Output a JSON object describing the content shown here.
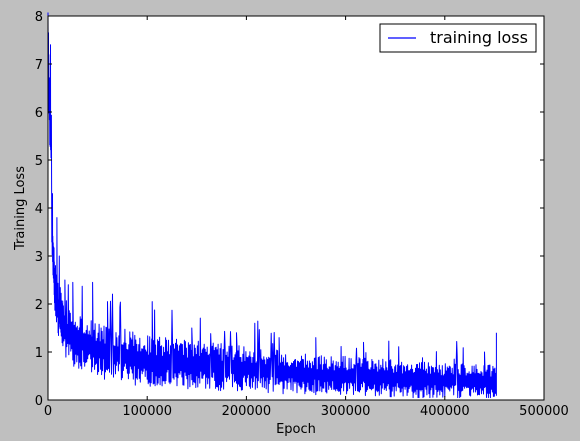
{
  "chart_data": {
    "type": "line",
    "xlabel": "Epoch",
    "ylabel": "Training Loss",
    "xlim": [
      0,
      500000
    ],
    "ylim": [
      0,
      8
    ],
    "xticks": [
      0,
      100000,
      200000,
      300000,
      400000,
      500000
    ],
    "yticks": [
      0,
      1,
      2,
      3,
      4,
      5,
      6,
      7,
      8
    ],
    "xtick_labels": [
      "0",
      "100000",
      "200000",
      "300000",
      "400000",
      "500000"
    ],
    "ytick_labels": [
      "0",
      "1",
      "2",
      "3",
      "4",
      "5",
      "6",
      "7",
      "8"
    ],
    "grid": false,
    "legend_position": "top-right",
    "series": [
      {
        "name": "training loss",
        "color": "#0000ff",
        "x": [
          0,
          1000,
          2000,
          3000,
          4000,
          5000,
          7000,
          10000,
          15000,
          20000,
          30000,
          40000,
          50000,
          60000,
          70000,
          80000,
          90000,
          100000,
          120000,
          140000,
          160000,
          180000,
          200000,
          220000,
          240000,
          260000,
          280000,
          300000,
          320000,
          340000,
          360000,
          380000,
          400000,
          420000,
          440000,
          450000,
          452000
        ],
        "y": [
          7.6,
          6.5,
          5.8,
          5.2,
          3.6,
          3.0,
          2.4,
          1.9,
          1.6,
          1.4,
          1.25,
          1.15,
          1.05,
          1.0,
          0.95,
          0.9,
          0.85,
          0.8,
          0.78,
          0.75,
          0.7,
          0.68,
          0.65,
          0.6,
          0.58,
          0.55,
          0.52,
          0.5,
          0.48,
          0.46,
          0.44,
          0.42,
          0.4,
          0.4,
          0.38,
          0.4,
          0.45
        ],
        "spread": [
          0.2,
          0.5,
          0.5,
          0.5,
          0.5,
          0.45,
          0.45,
          0.45,
          0.5,
          0.5,
          0.45,
          0.45,
          0.45,
          0.45,
          0.45,
          0.45,
          0.42,
          0.42,
          0.4,
          0.4,
          0.38,
          0.38,
          0.36,
          0.35,
          0.35,
          0.33,
          0.32,
          0.32,
          0.3,
          0.3,
          0.3,
          0.3,
          0.28,
          0.28,
          0.28,
          0.28,
          0.28
        ],
        "peaks": [
          [
            500,
            7.65
          ],
          [
            2500,
            7.4
          ],
          [
            3000,
            5.2
          ],
          [
            4500,
            4.3
          ],
          [
            9000,
            3.8
          ],
          [
            17000,
            2.5
          ],
          [
            25000,
            2.45
          ],
          [
            45000,
            2.45
          ],
          [
            60000,
            2.05
          ],
          [
            105000,
            2.05
          ],
          [
            145000,
            1.5
          ],
          [
            190000,
            1.4
          ],
          [
            233000,
            1.3
          ],
          [
            270000,
            1.3
          ],
          [
            318000,
            1.2
          ],
          [
            440000,
            1.0
          ],
          [
            452000,
            1.4
          ]
        ]
      }
    ]
  }
}
